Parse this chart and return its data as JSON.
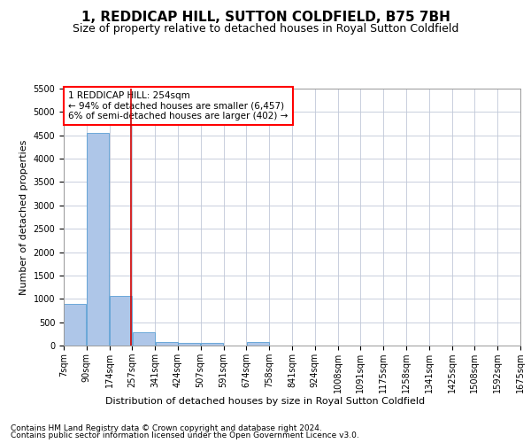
{
  "title": "1, REDDICAP HILL, SUTTON COLDFIELD, B75 7BH",
  "subtitle": "Size of property relative to detached houses in Royal Sutton Coldfield",
  "xlabel": "Distribution of detached houses by size in Royal Sutton Coldfield",
  "ylabel": "Number of detached properties",
  "footnote1": "Contains HM Land Registry data © Crown copyright and database right 2024.",
  "footnote2": "Contains public sector information licensed under the Open Government Licence v3.0.",
  "annotation_line1": "1 REDDICAP HILL: 254sqm",
  "annotation_line2": "← 94% of detached houses are smaller (6,457)",
  "annotation_line3": "6% of semi-detached houses are larger (402) →",
  "bar_color": "#aec6e8",
  "bar_edge_color": "#5a9fd4",
  "vline_color": "#cc0000",
  "vline_x": 254,
  "categories": [
    "7sqm",
    "90sqm",
    "174sqm",
    "257sqm",
    "341sqm",
    "424sqm",
    "507sqm",
    "591sqm",
    "674sqm",
    "758sqm",
    "841sqm",
    "924sqm",
    "1008sqm",
    "1091sqm",
    "1175sqm",
    "1258sqm",
    "1341sqm",
    "1425sqm",
    "1508sqm",
    "1592sqm",
    "1675sqm"
  ],
  "bin_edges": [
    7,
    90,
    174,
    257,
    341,
    424,
    507,
    591,
    674,
    758,
    841,
    924,
    1008,
    1091,
    1175,
    1258,
    1341,
    1425,
    1508,
    1592,
    1675
  ],
  "values": [
    900,
    4560,
    1070,
    290,
    80,
    65,
    60,
    0,
    70,
    0,
    0,
    0,
    0,
    0,
    0,
    0,
    0,
    0,
    0,
    0
  ],
  "ylim": [
    0,
    5500
  ],
  "yticks": [
    0,
    500,
    1000,
    1500,
    2000,
    2500,
    3000,
    3500,
    4000,
    4500,
    5000,
    5500
  ],
  "background_color": "#ffffff",
  "grid_color": "#c0c8d8",
  "title_fontsize": 11,
  "subtitle_fontsize": 9,
  "annotation_fontsize": 7.5,
  "axis_fontsize": 8,
  "tick_fontsize": 7
}
